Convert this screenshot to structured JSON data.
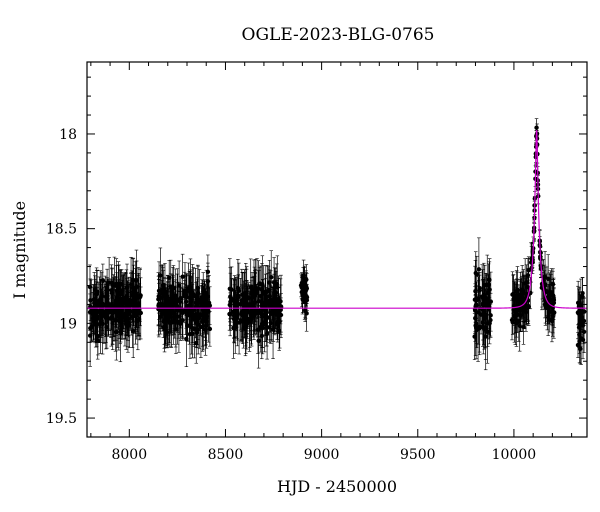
{
  "chart_data": {
    "type": "scatter",
    "title": "OGLE-2023-BLG-0765",
    "xlabel": "HJD - 2450000",
    "ylabel": "I magnitude",
    "xlim": [
      7780,
      10380
    ],
    "ylim": [
      19.6,
      17.62
    ],
    "y_inverted": true,
    "x_ticks": [
      8000,
      8500,
      9000,
      9500,
      10000
    ],
    "x_tick_labels": [
      "8000",
      "8500",
      "9000",
      "9500",
      "10000"
    ],
    "y_ticks": [
      18,
      18.5,
      19,
      19.5
    ],
    "y_tick_labels": [
      "18",
      "18.5",
      "19",
      "19.5"
    ],
    "grid": false,
    "colors": {
      "data": "#000000",
      "model": "#cc00cc"
    },
    "series": [
      {
        "kind": "observations",
        "seasons": [
          {
            "start": 7790,
            "end": 8060,
            "mag_mean": 18.91,
            "mag_scatter": 0.09,
            "err_mean": 0.12
          },
          {
            "start": 8150,
            "end": 8420,
            "mag_mean": 18.92,
            "mag_scatter": 0.09,
            "err_mean": 0.12
          },
          {
            "start": 8520,
            "end": 8790,
            "mag_mean": 18.92,
            "mag_scatter": 0.09,
            "err_mean": 0.12
          },
          {
            "start": 8890,
            "end": 8925,
            "mag_mean": 18.84,
            "mag_scatter": 0.08,
            "err_mean": 0.08
          },
          {
            "start": 9795,
            "end": 9880,
            "mag_mean": 18.92,
            "mag_scatter": 0.11,
            "err_mean": 0.13
          },
          {
            "start": 9990,
            "end": 10210,
            "mag_mean": 18.95,
            "mag_scatter": 0.08,
            "err_mean": 0.1
          },
          {
            "start": 10330,
            "end": 10370,
            "mag_mean": 18.98,
            "mag_scatter": 0.1,
            "err_mean": 0.1
          }
        ]
      },
      {
        "kind": "model",
        "baseline": 18.92,
        "peak_time": 10118,
        "peak_mag": 17.98,
        "tE": 30,
        "u0": 0.16
      }
    ]
  }
}
